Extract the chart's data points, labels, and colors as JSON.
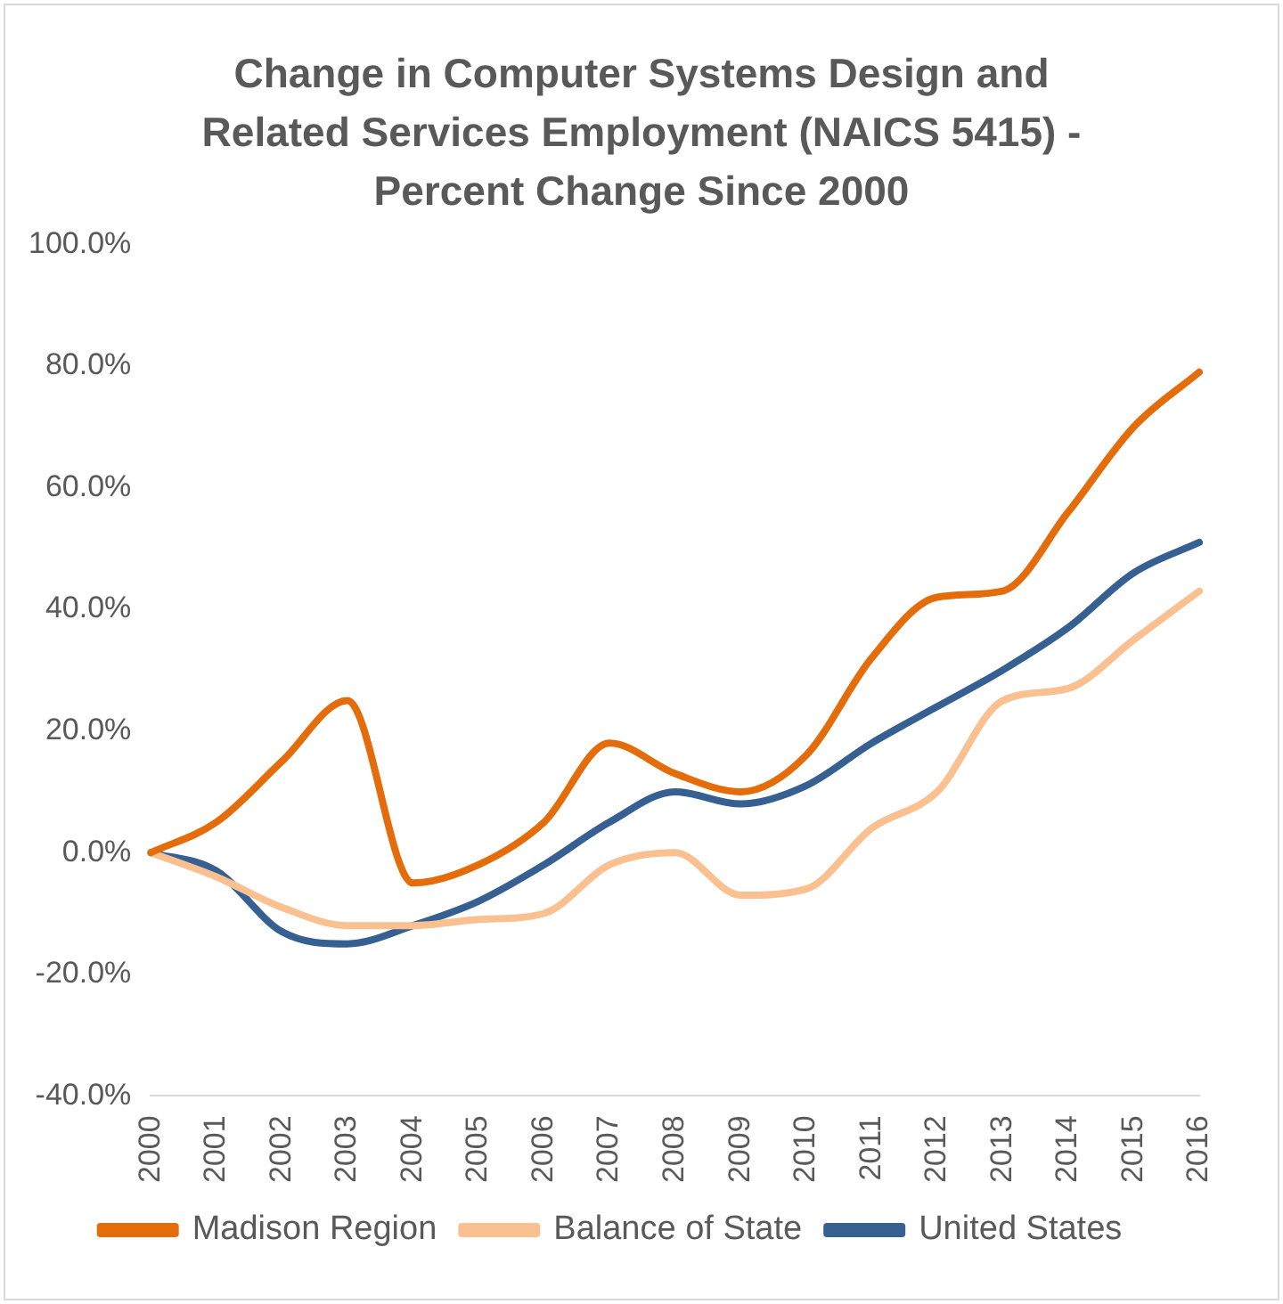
{
  "chart_data": {
    "type": "line",
    "title": "Change in Computer Systems Design and Related Services Employment (NAICS 5415) - Percent Change Since 2000",
    "categories": [
      "2000",
      "2001",
      "2002",
      "2003",
      "2004",
      "2005",
      "2006",
      "2007",
      "2008",
      "2009",
      "2010",
      "2011",
      "2012",
      "2013",
      "2014",
      "2015",
      "2016"
    ],
    "series": [
      {
        "name": "Madison Region",
        "color": "#e46c0a",
        "values": [
          0,
          5,
          15,
          25,
          -5,
          -2,
          5,
          18,
          13,
          10,
          16,
          32,
          42,
          43,
          56,
          70,
          79
        ]
      },
      {
        "name": "Balance of State",
        "color": "#fac090",
        "values": [
          0,
          -4,
          -9,
          -12,
          -12,
          -11,
          -10,
          -2,
          0,
          -7,
          -6,
          4,
          10,
          25,
          27,
          35,
          43
        ]
      },
      {
        "name": "United States",
        "color": "#366092",
        "values": [
          0,
          -3,
          -13,
          -15,
          -12,
          -8,
          -2,
          5,
          10,
          8,
          11,
          18,
          24,
          30,
          37,
          46,
          51
        ]
      }
    ],
    "ylim": [
      -40,
      100
    ],
    "yticks": [
      {
        "value": -40,
        "label": "-40.0%"
      },
      {
        "value": -20,
        "label": "-20.0%"
      },
      {
        "value": 0,
        "label": "0.0%"
      },
      {
        "value": 20,
        "label": "20.0%"
      },
      {
        "value": 40,
        "label": "40.0%"
      },
      {
        "value": 60,
        "label": "60.0%"
      },
      {
        "value": 80,
        "label": "80.0%"
      },
      {
        "value": 100,
        "label": "100.0%"
      }
    ],
    "grid": false,
    "legend": "bottom",
    "marker": "none",
    "line_style": "solid"
  }
}
